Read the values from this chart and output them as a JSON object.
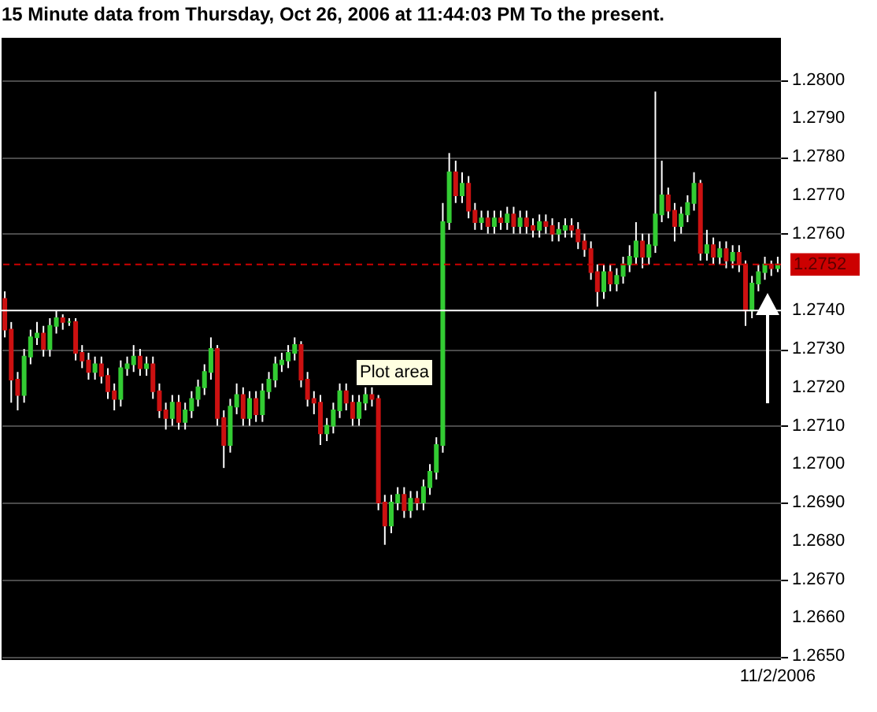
{
  "chart_data": {
    "type": "candlestick",
    "title": "15 Minute  data from Thursday, Oct 26, 2006 at 11:44:03 PM To the present.",
    "categories": [
      null,
      null,
      null,
      null,
      null,
      null,
      null,
      null,
      null,
      null,
      null,
      null,
      null,
      null,
      null,
      null,
      null,
      null,
      null,
      null,
      null,
      null,
      null,
      null,
      null,
      null,
      null,
      null,
      null,
      null,
      null,
      null,
      null,
      null,
      null,
      null,
      null,
      null,
      null,
      null,
      null,
      null,
      null,
      null,
      null,
      null,
      null,
      null,
      null,
      null,
      null,
      null,
      null,
      null,
      null,
      null,
      null,
      null,
      null,
      null,
      null,
      null,
      null,
      null,
      null,
      null,
      null,
      null,
      null,
      null,
      null,
      null,
      null,
      null,
      null,
      null,
      null,
      null,
      null,
      null,
      null,
      null,
      null,
      null,
      null,
      null,
      null,
      null,
      null,
      null,
      null,
      null,
      null,
      null,
      null,
      null,
      null,
      null,
      null,
      null,
      null,
      null,
      null,
      null,
      null,
      null,
      null,
      null,
      null,
      null,
      null,
      null,
      null,
      null,
      null,
      null,
      null,
      null,
      null,
      null,
      "11/2/2006"
    ],
    "ohlc": [
      [
        1.2743,
        1.2745,
        1.2733,
        1.2735
      ],
      [
        1.2735,
        1.2737,
        1.2716,
        1.2722
      ],
      [
        1.2722,
        1.2724,
        1.2714,
        1.2718
      ],
      [
        1.2718,
        1.273,
        1.2716,
        1.2728
      ],
      [
        1.2728,
        1.2735,
        1.2726,
        1.2733
      ],
      [
        1.2733,
        1.2737,
        1.2731,
        1.2734
      ],
      [
        1.2734,
        1.2736,
        1.2728,
        1.273
      ],
      [
        1.273,
        1.2738,
        1.2728,
        1.2736
      ],
      [
        1.2736,
        1.274,
        1.2734,
        1.2738
      ],
      [
        1.2738,
        1.2739,
        1.2735,
        1.2737
      ],
      [
        1.2737,
        1.2738,
        1.2736,
        1.2737
      ],
      [
        1.2737,
        1.2738,
        1.2727,
        1.2729
      ],
      [
        1.2729,
        1.2731,
        1.2725,
        1.2727
      ],
      [
        1.2727,
        1.2729,
        1.2722,
        1.2724
      ],
      [
        1.2724,
        1.2728,
        1.2722,
        1.2726
      ],
      [
        1.2726,
        1.2728,
        1.2721,
        1.2723
      ],
      [
        1.2723,
        1.2725,
        1.2717,
        1.2719
      ],
      [
        1.2719,
        1.2721,
        1.2714,
        1.2717
      ],
      [
        1.2717,
        1.2727,
        1.2715,
        1.2725
      ],
      [
        1.2725,
        1.2728,
        1.2723,
        1.2726
      ],
      [
        1.2726,
        1.2731,
        1.2724,
        1.2728
      ],
      [
        1.2728,
        1.273,
        1.2723,
        1.2725
      ],
      [
        1.2725,
        1.2728,
        1.2723,
        1.2726
      ],
      [
        1.2726,
        1.2728,
        1.2717,
        1.2719
      ],
      [
        1.2719,
        1.2721,
        1.2712,
        1.2714
      ],
      [
        1.2714,
        1.2716,
        1.2709,
        1.2712
      ],
      [
        1.2712,
        1.2718,
        1.271,
        1.2716
      ],
      [
        1.2716,
        1.2718,
        1.2709,
        1.2711
      ],
      [
        1.2711,
        1.2716,
        1.2709,
        1.2714
      ],
      [
        1.2714,
        1.2719,
        1.2712,
        1.2717
      ],
      [
        1.2717,
        1.2722,
        1.2715,
        1.272
      ],
      [
        1.272,
        1.2726,
        1.2718,
        1.2724
      ],
      [
        1.2724,
        1.2733,
        1.2722,
        1.273
      ],
      [
        1.273,
        1.2731,
        1.271,
        1.2712
      ],
      [
        1.2712,
        1.2714,
        1.2699,
        1.2705
      ],
      [
        1.2705,
        1.2717,
        1.2703,
        1.2715
      ],
      [
        1.2715,
        1.2721,
        1.2713,
        1.2718
      ],
      [
        1.2718,
        1.272,
        1.271,
        1.2712
      ],
      [
        1.2712,
        1.2719,
        1.271,
        1.2717
      ],
      [
        1.2717,
        1.2719,
        1.2711,
        1.2713
      ],
      [
        1.2713,
        1.2721,
        1.2711,
        1.2719
      ],
      [
        1.2719,
        1.2724,
        1.2717,
        1.2722
      ],
      [
        1.2722,
        1.2728,
        1.272,
        1.2726
      ],
      [
        1.2726,
        1.2729,
        1.2724,
        1.2727
      ],
      [
        1.2727,
        1.2731,
        1.2725,
        1.2729
      ],
      [
        1.2729,
        1.2733,
        1.2727,
        1.2731
      ],
      [
        1.2731,
        1.2732,
        1.272,
        1.2722
      ],
      [
        1.2722,
        1.2724,
        1.2715,
        1.2717
      ],
      [
        1.2717,
        1.2719,
        1.2713,
        1.2716
      ],
      [
        1.2716,
        1.2718,
        1.2705,
        1.2708
      ],
      [
        1.2708,
        1.2712,
        1.2706,
        1.271
      ],
      [
        1.271,
        1.2716,
        1.2708,
        1.2714
      ],
      [
        1.2714,
        1.2721,
        1.2712,
        1.2719
      ],
      [
        1.2719,
        1.2721,
        1.2714,
        1.2716
      ],
      [
        1.2716,
        1.2718,
        1.271,
        1.2712
      ],
      [
        1.2712,
        1.2718,
        1.271,
        1.2716
      ],
      [
        1.2716,
        1.272,
        1.2714,
        1.2718
      ],
      [
        1.2718,
        1.272,
        1.2715,
        1.2717
      ],
      [
        1.2717,
        1.2718,
        1.2688,
        1.269
      ],
      [
        1.269,
        1.2692,
        1.2679,
        1.2684
      ],
      [
        1.2684,
        1.2692,
        1.2682,
        1.269
      ],
      [
        1.269,
        1.2694,
        1.2688,
        1.2692
      ],
      [
        1.2692,
        1.2694,
        1.2686,
        1.2688
      ],
      [
        1.2688,
        1.2693,
        1.2686,
        1.2691
      ],
      [
        1.2691,
        1.2693,
        1.2688,
        1.269
      ],
      [
        1.269,
        1.2696,
        1.2688,
        1.2694
      ],
      [
        1.2694,
        1.27,
        1.2692,
        1.2698
      ],
      [
        1.2698,
        1.2707,
        1.2696,
        1.2705
      ],
      [
        1.2705,
        1.2768,
        1.2703,
        1.2763
      ],
      [
        1.2763,
        1.2781,
        1.2761,
        1.2776
      ],
      [
        1.2776,
        1.2779,
        1.2768,
        1.277
      ],
      [
        1.277,
        1.2776,
        1.2768,
        1.2773
      ],
      [
        1.2773,
        1.2775,
        1.2764,
        1.2766
      ],
      [
        1.2766,
        1.2768,
        1.2761,
        1.2763
      ],
      [
        1.2763,
        1.2766,
        1.2761,
        1.2764
      ],
      [
        1.2764,
        1.2766,
        1.276,
        1.2762
      ],
      [
        1.2762,
        1.2766,
        1.276,
        1.2764
      ],
      [
        1.2764,
        1.2766,
        1.2761,
        1.2763
      ],
      [
        1.2763,
        1.2767,
        1.2761,
        1.2765
      ],
      [
        1.2765,
        1.2767,
        1.276,
        1.2762
      ],
      [
        1.2762,
        1.2766,
        1.276,
        1.2764
      ],
      [
        1.2764,
        1.2766,
        1.276,
        1.2762
      ],
      [
        1.2762,
        1.2764,
        1.2759,
        1.2761
      ],
      [
        1.2761,
        1.2765,
        1.2759,
        1.2763
      ],
      [
        1.2763,
        1.2765,
        1.276,
        1.2762
      ],
      [
        1.2762,
        1.2764,
        1.2758,
        1.276
      ],
      [
        1.276,
        1.2763,
        1.2758,
        1.2761
      ],
      [
        1.2761,
        1.2764,
        1.2759,
        1.2762
      ],
      [
        1.2762,
        1.2764,
        1.2759,
        1.2761
      ],
      [
        1.2761,
        1.2763,
        1.2756,
        1.2758
      ],
      [
        1.2758,
        1.276,
        1.2754,
        1.2756
      ],
      [
        1.2756,
        1.2758,
        1.2748,
        1.275
      ],
      [
        1.275,
        1.2752,
        1.2741,
        1.2745
      ],
      [
        1.2745,
        1.2752,
        1.2743,
        1.275
      ],
      [
        1.275,
        1.2752,
        1.2745,
        1.2747
      ],
      [
        1.2747,
        1.2751,
        1.2745,
        1.2749
      ],
      [
        1.2749,
        1.2754,
        1.2747,
        1.2752
      ],
      [
        1.2752,
        1.2757,
        1.275,
        1.2754
      ],
      [
        1.2754,
        1.2763,
        1.2752,
        1.2758
      ],
      [
        1.2758,
        1.276,
        1.2751,
        1.2754
      ],
      [
        1.2754,
        1.276,
        1.2752,
        1.2757
      ],
      [
        1.2757,
        1.2797,
        1.2755,
        1.2765
      ],
      [
        1.2765,
        1.2779,
        1.2763,
        1.277
      ],
      [
        1.277,
        1.2772,
        1.2764,
        1.2766
      ],
      [
        1.2766,
        1.2768,
        1.2758,
        1.2762
      ],
      [
        1.2762,
        1.2767,
        1.276,
        1.2765
      ],
      [
        1.2765,
        1.277,
        1.2763,
        1.2768
      ],
      [
        1.2768,
        1.2776,
        1.2766,
        1.2773
      ],
      [
        1.2773,
        1.2774,
        1.2753,
        1.2755
      ],
      [
        1.2755,
        1.2761,
        1.2753,
        1.2757
      ],
      [
        1.2757,
        1.2759,
        1.2752,
        1.2754
      ],
      [
        1.2754,
        1.2758,
        1.2752,
        1.2756
      ],
      [
        1.2756,
        1.2758,
        1.2751,
        1.2753
      ],
      [
        1.2753,
        1.2757,
        1.2751,
        1.2755
      ],
      [
        1.2755,
        1.2757,
        1.275,
        1.2752
      ],
      [
        1.2752,
        1.2753,
        1.2736,
        1.274
      ],
      [
        1.274,
        1.2749,
        1.2738,
        1.2747
      ],
      [
        1.2747,
        1.2752,
        1.2745,
        1.275
      ],
      [
        1.275,
        1.2754,
        1.2748,
        1.2752
      ],
      [
        1.2752,
        1.2753,
        1.2749,
        1.2751
      ],
      [
        1.2751,
        1.2754,
        1.275,
        1.2752
      ]
    ],
    "ylim": [
      1.2649,
      1.2811
    ],
    "yticks": [
      {
        "value": 1.28,
        "label": "1.2800"
      },
      {
        "value": 1.279,
        "label": "1.2790"
      },
      {
        "value": 1.278,
        "label": "1.2780"
      },
      {
        "value": 1.277,
        "label": "1.2770"
      },
      {
        "value": 1.276,
        "label": "1.2760"
      },
      {
        "value": 1.274,
        "label": "1.2740"
      },
      {
        "value": 1.273,
        "label": "1.2730"
      },
      {
        "value": 1.272,
        "label": "1.2720"
      },
      {
        "value": 1.271,
        "label": "1.2710"
      },
      {
        "value": 1.27,
        "label": "1.2700"
      },
      {
        "value": 1.269,
        "label": "1.2690"
      },
      {
        "value": 1.268,
        "label": "1.2680"
      },
      {
        "value": 1.267,
        "label": "1.2670"
      },
      {
        "value": 1.266,
        "label": "1.2660"
      },
      {
        "value": 1.265,
        "label": "1.2650"
      }
    ],
    "grid": "y",
    "ref_lines": [
      {
        "axis": "y",
        "value": 1.2752,
        "label": "1.2752",
        "color": "#cc0000",
        "line_style": "dashed"
      },
      {
        "axis": "y",
        "value": 1.274,
        "color": "#ffffff",
        "line_style": "solid"
      }
    ],
    "annotations": [
      "Plot area"
    ]
  }
}
